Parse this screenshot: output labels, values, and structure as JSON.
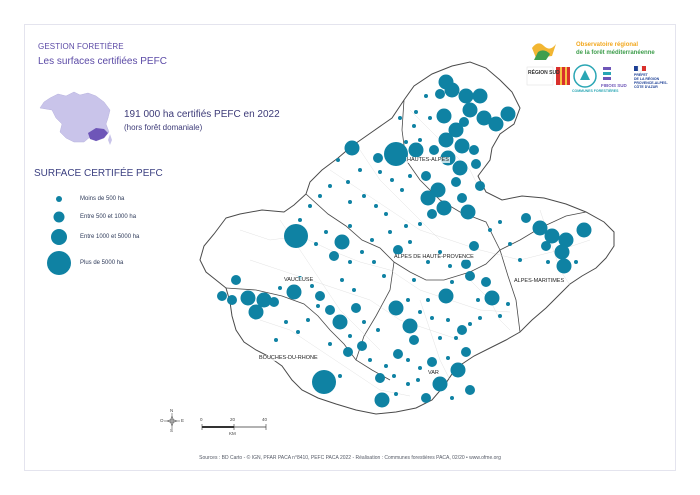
{
  "header": {
    "category": "GESTION FORETIÈRE",
    "title": "Les surfaces certifiées PEFC"
  },
  "stat": {
    "main": "191 000 ha certifiés PEFC en 2022",
    "sub": "(hors forêt domaniale)"
  },
  "legend": {
    "title": "SURFACE CERTIFÉE PEFC",
    "items": [
      {
        "label": "Moins de 500 ha"
      },
      {
        "label": "Entre 500 et 1000 ha"
      },
      {
        "label": "Entre 1000 et 5000 ha"
      },
      {
        "label": "Plus de 5000 ha"
      }
    ],
    "symbol_color": "#0f82a3"
  },
  "departments": {
    "hautes_alpes": "HAUTES-ALPES",
    "alpes_haute_provence": "ALPES DE HAUTE-PROVENCE",
    "alpes_maritimes": "ALPES-MARITIMES",
    "vaucluse": "VAUCLUSE",
    "bouches_du_rhone": "BOUCHES-DU-RHONE",
    "var": "VAR"
  },
  "logos": {
    "observatoire_line1": "Observatoire régional",
    "observatoire_line2": "de la forêt méditerranéenne",
    "region": "RÉGION SUD",
    "communes": "COMMUNES FORESTIÈRES",
    "fibois": "FIBOIS SUD",
    "prefet_line1": "PRÉFET",
    "prefet_line2": "DE LA RÉGION",
    "prefet_line3": "PROVENCE-ALPES-",
    "prefet_line4": "CÔTE D'AZUR"
  },
  "scale": {
    "ticks": [
      "0",
      "20",
      "40"
    ],
    "unit": "KM",
    "compass": [
      "N",
      "O",
      "E",
      "S"
    ]
  },
  "footer": "Sources : BD Carto - © IGN, PFAR PACA n°8410, PEFC PACA 2022 - Réalisation : Communes forestières PACA, 02/20 • www.ofme.org",
  "colors": {
    "accent": "#5b4aa6",
    "dots": "#0f82a3",
    "region_fill": "#ffffff",
    "region_stroke": "#555555",
    "inset_france": "#c9c4ea",
    "inset_paca": "#6e56b8"
  }
}
